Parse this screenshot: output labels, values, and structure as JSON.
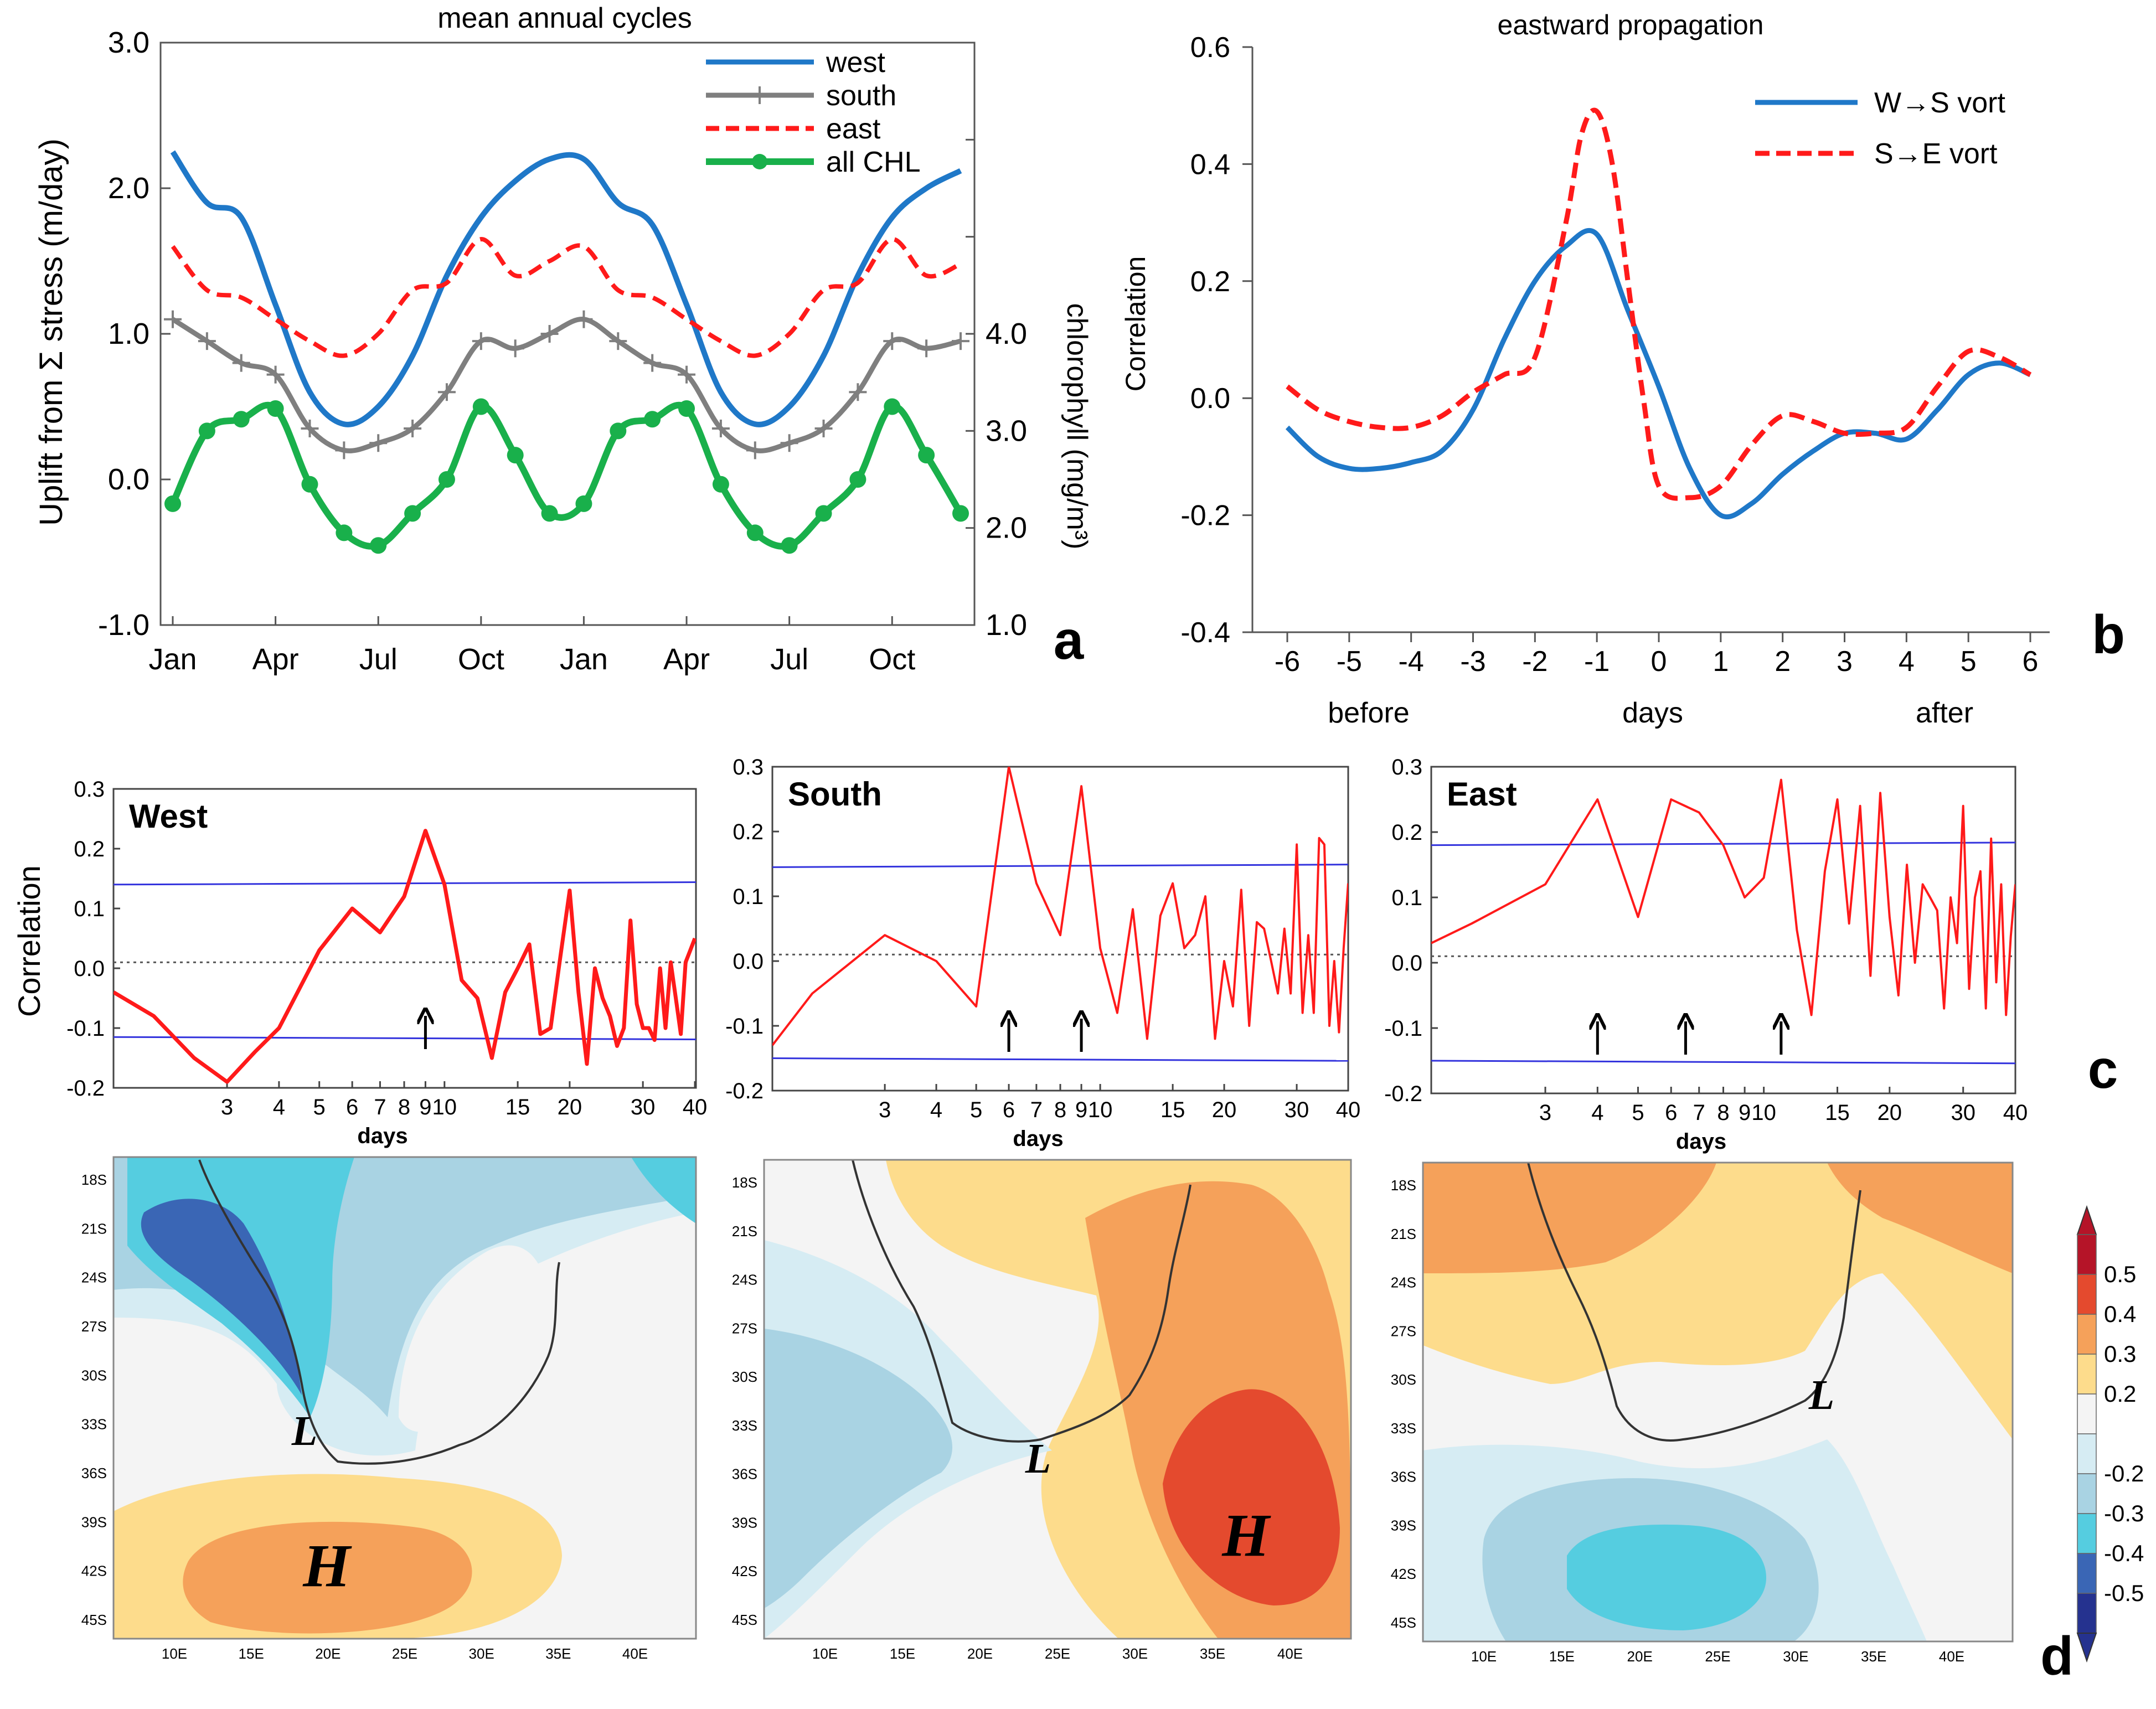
{
  "colors": {
    "west": "#1f78c8",
    "south": "#7f7f7f",
    "east": "#ff1a1a",
    "chl": "#19b04b",
    "corr": "#ff1a1a",
    "bound": "#3333dd",
    "wsv": "#1f78c8",
    "sev": "#ff1a1a"
  },
  "chart_data": [
    {
      "id": "a",
      "type": "line",
      "title": "mean annual cycles",
      "ylabel": "Uplift from Σ stress (m/day)",
      "y2label": "chlorophyll (mg/m³)",
      "ylim": [
        -1.0,
        3.0
      ],
      "y2lim": [
        1.0,
        7.0
      ],
      "yticks": [
        "-1.0",
        "0.0",
        "1.0",
        "2.0",
        "3.0"
      ],
      "y2ticks": [
        "1.0",
        "2.0",
        "3.0",
        "4.0"
      ],
      "xtick_labels": [
        "Jan",
        "Apr",
        "Jul",
        "Oct",
        "Jan",
        "Apr",
        "Jul",
        "Oct"
      ],
      "panel_letter": "a",
      "series": [
        {
          "name": "west",
          "axis": "left",
          "values": [
            2.25,
            1.9,
            1.8,
            1.2,
            0.6,
            0.38,
            0.5,
            0.85,
            1.4,
            1.8,
            2.05,
            2.2,
            2.2,
            1.9,
            1.75,
            1.2,
            0.6,
            0.38,
            0.5,
            0.85,
            1.4,
            1.8,
            2.0,
            2.12
          ]
        },
        {
          "name": "south",
          "axis": "left",
          "values": [
            1.1,
            0.95,
            0.8,
            0.72,
            0.35,
            0.2,
            0.25,
            0.35,
            0.6,
            0.95,
            0.9,
            1.0,
            1.1,
            0.95,
            0.8,
            0.72,
            0.35,
            0.2,
            0.25,
            0.35,
            0.6,
            0.95,
            0.9,
            0.95
          ]
        },
        {
          "name": "east",
          "axis": "left",
          "values": [
            1.6,
            1.3,
            1.25,
            1.1,
            0.95,
            0.85,
            1.0,
            1.3,
            1.35,
            1.65,
            1.4,
            1.5,
            1.6,
            1.3,
            1.25,
            1.1,
            0.95,
            0.85,
            1.0,
            1.3,
            1.35,
            1.65,
            1.4,
            1.48
          ]
        },
        {
          "name": "all CHL",
          "axis": "right",
          "values": [
            2.25,
            3.0,
            3.12,
            3.23,
            2.45,
            1.95,
            1.82,
            2.15,
            2.5,
            3.25,
            2.75,
            2.15,
            2.25,
            3.0,
            3.12,
            3.23,
            2.45,
            1.95,
            1.82,
            2.15,
            2.5,
            3.25,
            2.75,
            2.15
          ]
        }
      ]
    },
    {
      "id": "b",
      "type": "line",
      "title": "eastward propagation",
      "ylabel": "Correlation",
      "xlabel_left": "before",
      "xlabel_center": "days",
      "xlabel_right": "after",
      "xlim": [
        -6,
        6
      ],
      "ylim": [
        -0.4,
        0.6
      ],
      "xticks": [
        "-6",
        "-5",
        "-4",
        "-3",
        "-2",
        "-1",
        "0",
        "1",
        "2",
        "3",
        "4",
        "5",
        "6"
      ],
      "yticks": [
        "-0.4",
        "-0.2",
        "0.0",
        "0.2",
        "0.4",
        "0.6"
      ],
      "panel_letter": "b",
      "series": [
        {
          "name": "W→S vort",
          "x": [
            -6,
            -5.5,
            -5,
            -4.5,
            -4,
            -3.5,
            -3,
            -2.5,
            -2,
            -1.5,
            -1,
            -0.5,
            0,
            0.5,
            1,
            1.5,
            2,
            2.5,
            3,
            3.5,
            4,
            4.5,
            5,
            5.5,
            6
          ],
          "y": [
            -0.05,
            -0.1,
            -0.12,
            -0.12,
            -0.11,
            -0.09,
            -0.02,
            0.1,
            0.2,
            0.26,
            0.28,
            0.15,
            0.02,
            -0.12,
            -0.2,
            -0.18,
            -0.13,
            -0.09,
            -0.06,
            -0.06,
            -0.07,
            -0.02,
            0.04,
            0.06,
            0.04
          ]
        },
        {
          "name": "S→E vort",
          "x": [
            -6,
            -5.5,
            -5,
            -4.5,
            -4,
            -3.5,
            -3,
            -2.5,
            -2,
            -1.5,
            -1.25,
            -1,
            -0.75,
            -0.5,
            -0.25,
            0,
            0.5,
            1,
            1.5,
            2,
            2.5,
            3,
            3.5,
            4,
            4.5,
            5,
            5.5,
            6
          ],
          "y": [
            0.02,
            -0.02,
            -0.04,
            -0.05,
            -0.05,
            -0.03,
            0.01,
            0.04,
            0.07,
            0.3,
            0.45,
            0.49,
            0.4,
            0.2,
            0.0,
            -0.15,
            -0.17,
            -0.15,
            -0.08,
            -0.03,
            -0.04,
            -0.06,
            -0.06,
            -0.05,
            0.02,
            0.08,
            0.07,
            0.04
          ]
        }
      ]
    },
    {
      "id": "c-west",
      "type": "line",
      "title": "West",
      "ylabel": "Correlation",
      "xlabel": "days",
      "ylim": [
        -0.2,
        0.3
      ],
      "yticks": [
        "-0.2",
        "-0.1",
        "0.0",
        "0.1",
        "0.2",
        "0.3"
      ],
      "xticks": [
        "3",
        "4",
        "5",
        "6",
        "7",
        "8",
        "9",
        "10",
        "15",
        "20",
        "30",
        "40"
      ],
      "upper_bound": 0.14,
      "lower_bound": -0.115,
      "arrows_at_days": [
        9
      ],
      "x": [
        1.6,
        2,
        2.5,
        3,
        3.5,
        4,
        5,
        6,
        7,
        8,
        9,
        10,
        11,
        12,
        13,
        14,
        15,
        16,
        17,
        18,
        19,
        20,
        21,
        22,
        23,
        24,
        25,
        26,
        27,
        28,
        29,
        30,
        31,
        32,
        33,
        34,
        35,
        36,
        37,
        38,
        39,
        40
      ],
      "y": [
        -0.04,
        -0.08,
        -0.15,
        -0.19,
        -0.14,
        -0.1,
        0.03,
        0.1,
        0.06,
        0.12,
        0.23,
        0.14,
        -0.02,
        -0.05,
        -0.15,
        -0.04,
        0.0,
        0.04,
        -0.11,
        -0.1,
        0.02,
        0.13,
        -0.04,
        -0.16,
        0.0,
        -0.05,
        -0.08,
        -0.13,
        -0.1,
        0.08,
        -0.06,
        -0.1,
        -0.1,
        -0.12,
        0.0,
        -0.1,
        0.01,
        -0.05,
        -0.11,
        0.01,
        0.03,
        0.05
      ]
    },
    {
      "id": "c-south",
      "type": "line",
      "title": "South",
      "ylabel": "",
      "xlabel": "days",
      "ylim": [
        -0.2,
        0.3
      ],
      "yticks": [
        "-0.2",
        "-0.1",
        "0.0",
        "0.1",
        "0.2",
        "0.3"
      ],
      "xticks": [
        "3",
        "4",
        "5",
        "6",
        "7",
        "8",
        "9",
        "10",
        "15",
        "20",
        "30",
        "40"
      ],
      "upper_bound": 0.145,
      "lower_bound": -0.15,
      "arrows_at_days": [
        6,
        9
      ],
      "x": [
        1.6,
        2,
        3,
        4,
        5,
        6,
        7,
        8,
        9,
        10,
        11,
        12,
        13,
        14,
        15,
        16,
        17,
        18,
        19,
        20,
        21,
        22,
        23,
        24,
        25,
        26,
        27,
        28,
        29,
        30,
        31,
        32,
        33,
        34,
        35,
        36,
        37,
        38,
        39,
        40
      ],
      "y": [
        -0.13,
        -0.05,
        0.04,
        0.0,
        -0.07,
        0.3,
        0.12,
        0.04,
        0.27,
        0.02,
        -0.08,
        0.08,
        -0.12,
        0.07,
        0.12,
        0.02,
        0.04,
        0.1,
        -0.12,
        0.0,
        -0.07,
        0.11,
        -0.1,
        0.06,
        0.05,
        0.0,
        -0.05,
        0.05,
        -0.05,
        0.18,
        -0.08,
        0.04,
        -0.08,
        0.19,
        0.18,
        -0.1,
        0.0,
        -0.11,
        0.02,
        0.12
      ]
    },
    {
      "id": "c-east",
      "type": "line",
      "title": "East",
      "ylabel": "",
      "xlabel": "days",
      "ylim": [
        -0.2,
        0.3
      ],
      "yticks": [
        "-0.2",
        "-0.1",
        "0.0",
        "0.1",
        "0.2",
        "0.3"
      ],
      "xticks": [
        "3",
        "4",
        "5",
        "6",
        "7",
        "8",
        "9",
        "10",
        "15",
        "20",
        "30",
        "40"
      ],
      "upper_bound": 0.18,
      "lower_bound": -0.15,
      "arrows_at_days": [
        4,
        6.5,
        11
      ],
      "x": [
        1.6,
        2,
        3,
        4,
        5,
        6,
        7,
        8,
        9,
        10,
        11,
        12,
        13,
        14,
        15,
        16,
        17,
        18,
        19,
        20,
        21,
        22,
        23,
        24,
        25,
        26,
        27,
        28,
        29,
        30,
        31,
        32,
        33,
        34,
        35,
        36,
        37,
        38,
        39,
        40
      ],
      "y": [
        0.03,
        0.06,
        0.12,
        0.25,
        0.07,
        0.25,
        0.23,
        0.18,
        0.1,
        0.13,
        0.28,
        0.05,
        -0.08,
        0.14,
        0.25,
        0.06,
        0.24,
        -0.02,
        0.26,
        0.07,
        -0.05,
        0.15,
        0.0,
        0.12,
        0.1,
        0.08,
        -0.07,
        0.1,
        0.03,
        0.24,
        -0.04,
        0.1,
        0.14,
        -0.07,
        0.19,
        -0.03,
        0.12,
        -0.08,
        0.04,
        0.12
      ]
    }
  ],
  "panel_c_letter": "c",
  "panel_d_letter": "d",
  "maps": {
    "lat_labels": [
      "18S",
      "21S",
      "24S",
      "27S",
      "30S",
      "33S",
      "36S",
      "39S",
      "42S",
      "45S"
    ],
    "lon_labels": [
      "10E",
      "15E",
      "20E",
      "25E",
      "30E",
      "35E",
      "40E"
    ],
    "markers": [
      {
        "panel": "west",
        "low": "L",
        "high": "H"
      },
      {
        "panel": "south",
        "low": "L",
        "high": "H"
      },
      {
        "panel": "east",
        "low": "L"
      }
    ]
  },
  "colorbar": {
    "labels": [
      "0.5",
      "0.4",
      "0.3",
      "0.2",
      "-0.2",
      "-0.3",
      "-0.4",
      "-0.5"
    ],
    "colors": [
      "#b51428",
      "#e44a2e",
      "#f5a15a",
      "#fddc8c",
      "#f4f4f4",
      "#d6ecf3",
      "#a9d3e3",
      "#55cde0",
      "#3a66b5",
      "#25328f"
    ]
  }
}
